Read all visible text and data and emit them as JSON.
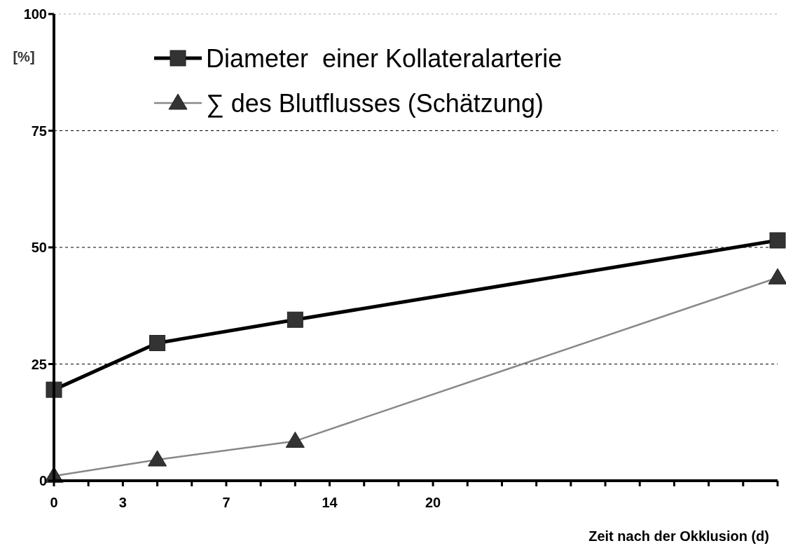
{
  "chart_data": {
    "type": "line",
    "xlabel": "Zeit nach der Okklusion (d)",
    "ylabel": "[%]",
    "categories": [
      "0",
      null,
      "3",
      null,
      null,
      "7",
      null,
      null,
      "14",
      null,
      null,
      "20",
      null,
      null,
      null,
      null,
      null,
      null,
      null,
      null,
      null,
      null
    ],
    "ylim": [
      0,
      100
    ],
    "yticks": [
      0,
      25,
      50,
      75,
      100
    ],
    "grid": "y",
    "legend": "top",
    "series": [
      {
        "name": "Diameter  einer Kollateralarterie",
        "color": "#000000",
        "marker": "square",
        "values": [
          19.5,
          null,
          null,
          29.5,
          null,
          null,
          null,
          34.5,
          null,
          null,
          null,
          null,
          null,
          null,
          null,
          null,
          null,
          null,
          null,
          null,
          null,
          51.5
        ]
      },
      {
        "name": "∑ des Blutflusses (Schätzung)",
        "color": "#888888",
        "marker": "triangle",
        "values": [
          1,
          null,
          null,
          4.5,
          null,
          null,
          null,
          8.5,
          null,
          null,
          null,
          null,
          null,
          null,
          null,
          null,
          null,
          null,
          null,
          null,
          null,
          43.5
        ]
      }
    ]
  }
}
